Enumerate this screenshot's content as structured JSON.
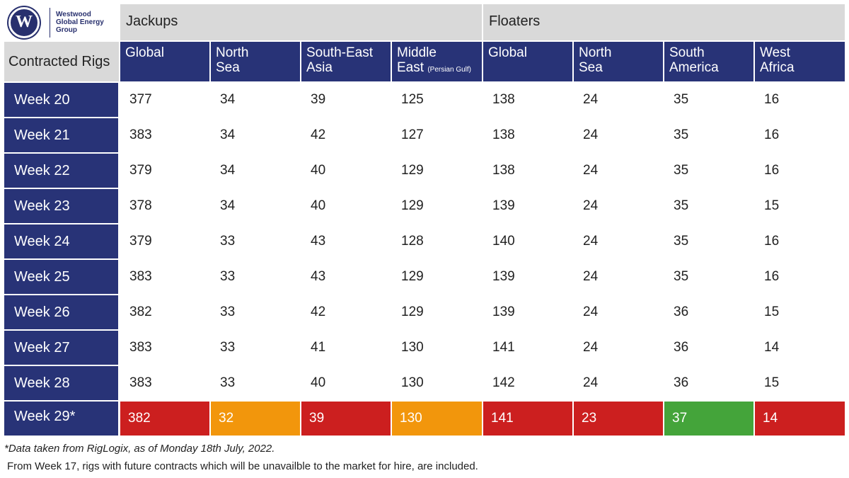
{
  "logo": {
    "mark": "W",
    "lines": [
      "Westwood",
      "Global Energy",
      "Group"
    ]
  },
  "groups": {
    "jackups": "Jackups",
    "floaters": "Floaters"
  },
  "corner_label": "Contracted Rigs",
  "columns": [
    {
      "label": "Global",
      "label2": "",
      "small": ""
    },
    {
      "label": "North",
      "label2": "Sea",
      "small": ""
    },
    {
      "label": "South-East",
      "label2": "Asia",
      "small": ""
    },
    {
      "label": "Middle",
      "label2": "East",
      "small": "(Persian Gulf)"
    },
    {
      "label": "Global",
      "label2": "",
      "small": ""
    },
    {
      "label": "North",
      "label2": "Sea",
      "small": ""
    },
    {
      "label": "South",
      "label2": "America",
      "small": ""
    },
    {
      "label": "West",
      "label2": "Africa",
      "small": ""
    }
  ],
  "rows": [
    {
      "label": "Week 20",
      "values": [
        "377",
        "34",
        "39",
        "125",
        "138",
        "24",
        "35",
        "16"
      ]
    },
    {
      "label": "Week 21",
      "values": [
        "383",
        "34",
        "42",
        "127",
        "138",
        "24",
        "35",
        "16"
      ]
    },
    {
      "label": "Week 22",
      "values": [
        "379",
        "34",
        "40",
        "129",
        "138",
        "24",
        "35",
        "16"
      ]
    },
    {
      "label": "Week 23",
      "values": [
        "378",
        "34",
        "40",
        "129",
        "139",
        "24",
        "35",
        "15"
      ]
    },
    {
      "label": "Week 24",
      "values": [
        "379",
        "33",
        "43",
        "128",
        "140",
        "24",
        "35",
        "16"
      ]
    },
    {
      "label": "Week 25",
      "values": [
        "383",
        "33",
        "43",
        "129",
        "139",
        "24",
        "35",
        "16"
      ]
    },
    {
      "label": "Week 26",
      "values": [
        "382",
        "33",
        "42",
        "129",
        "139",
        "24",
        "36",
        "15"
      ]
    },
    {
      "label": "Week 27",
      "values": [
        "383",
        "33",
        "41",
        "130",
        "141",
        "24",
        "36",
        "14"
      ]
    },
    {
      "label": "Week 28",
      "values": [
        "383",
        "33",
        "40",
        "130",
        "142",
        "24",
        "36",
        "15"
      ]
    },
    {
      "label": "Week 29*",
      "values": [
        "382",
        "32",
        "39",
        "130",
        "141",
        "23",
        "37",
        "14"
      ],
      "highlights": [
        "red",
        "orange",
        "red",
        "orange",
        "red",
        "red",
        "green",
        "red"
      ]
    }
  ],
  "colors": {
    "header_blue": "#283377",
    "header_grey": "#d9d9d9",
    "red": "#cc1f1f",
    "orange": "#f2960c",
    "green": "#44a43a"
  },
  "footnotes": {
    "source": "*Data taken from RigLogix, as of Monday 18th July, 2022.",
    "note": "From Week 17, rigs with future contracts which will be unavailble to the market for hire, are included."
  }
}
